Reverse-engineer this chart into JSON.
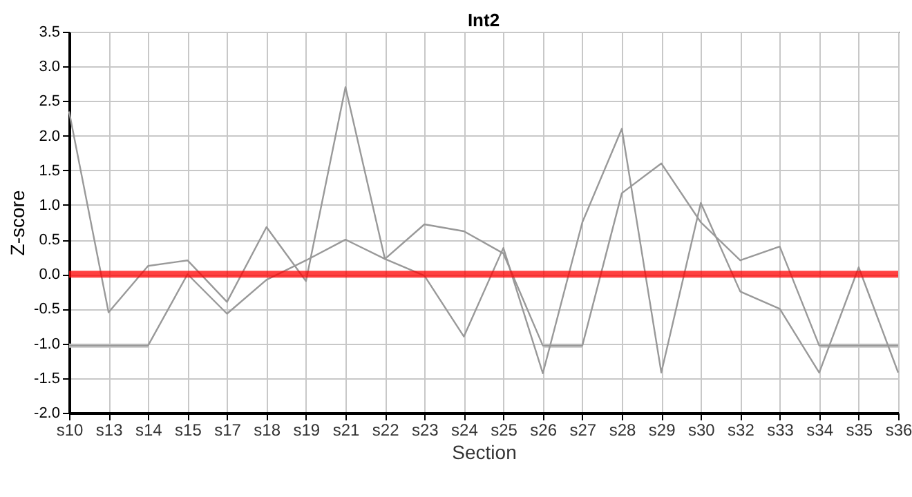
{
  "chart_data": {
    "type": "line",
    "title": "Int2",
    "xlabel": "Section",
    "ylabel": "Z-score",
    "categories": [
      "s10",
      "s13",
      "s14",
      "s15",
      "s17",
      "s18",
      "s19",
      "s21",
      "s22",
      "s23",
      "s24",
      "s25",
      "s26",
      "s27",
      "s28",
      "s29",
      "s30",
      "s32",
      "s33",
      "s34",
      "s35",
      "s36"
    ],
    "series": [
      {
        "color": "#c8c8c8",
        "values": [
          -1.03,
          -1.03,
          -1.03,
          null,
          null,
          null,
          null,
          null,
          null,
          null,
          null,
          null,
          -1.03,
          -1.03,
          null,
          null,
          null,
          null,
          null,
          -1.03,
          -1.03,
          -1.03
        ]
      },
      {
        "color": "#999999",
        "values": [
          2.35,
          -0.55,
          0.12,
          0.2,
          -0.4,
          0.68,
          -0.1,
          2.7,
          0.22,
          -0.02,
          -0.9,
          0.38,
          -1.43,
          0.75,
          2.1,
          -1.42,
          1.03,
          -0.25,
          -0.5,
          -1.42,
          0.1,
          -1.42
        ]
      },
      {
        "color": "#999999",
        "values": [
          -1.03,
          -1.03,
          -1.03,
          0.0,
          -0.57,
          -0.08,
          0.2,
          0.5,
          0.22,
          0.72,
          0.62,
          0.3,
          -1.03,
          -1.03,
          1.17,
          1.6,
          0.75,
          0.2,
          0.4,
          -1.03,
          -1.03,
          -1.03
        ]
      }
    ],
    "ylim": [
      -2.0,
      3.5
    ],
    "yticks": [
      {
        "value": -2,
        "label": "-2.0"
      },
      {
        "value": -1.5,
        "label": "-1.5"
      },
      {
        "value": -1,
        "label": "-1.0"
      },
      {
        "value": -0.5,
        "label": "-0.5"
      },
      {
        "value": 0,
        "label": "0.0"
      },
      {
        "value": 0.5,
        "label": "0.5"
      },
      {
        "value": 1,
        "label": "1.0"
      },
      {
        "value": 1.5,
        "label": "1.5"
      },
      {
        "value": 2,
        "label": "2.0"
      },
      {
        "value": 2.5,
        "label": "2.5"
      },
      {
        "value": 3,
        "label": "3.0"
      },
      {
        "value": 3.5,
        "label": "3.5"
      }
    ],
    "ref_lines": [
      {
        "axis": "y",
        "value": 0,
        "color": "#ff0000"
      }
    ],
    "grid": true,
    "marker": "none",
    "line_style": "solid"
  }
}
